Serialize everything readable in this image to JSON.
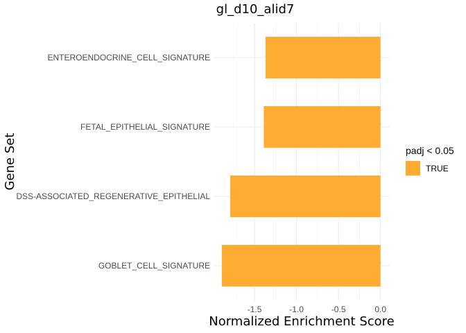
{
  "chart_data": {
    "type": "bar",
    "orientation": "horizontal",
    "title": "gl_d10_alid7",
    "xlabel": "Normalized Enrichment Score",
    "ylabel": "Gene Set",
    "categories": [
      "ENTEROENDOCRINE_CELL_SIGNATURE",
      "FETAL_EPITHELIAL_SIGNATURE",
      "DSS-ASSOCIATED_REGENERATIVE_EPITHELIAL",
      "GOBLET_CELL_SIGNATURE"
    ],
    "values": [
      -1.37,
      -1.39,
      -1.79,
      -1.89
    ],
    "xlim": [
      -1.98,
      0.11
    ],
    "xticks": [
      -1.5,
      -1.0,
      -0.5,
      0.0
    ],
    "xtick_labels": [
      "-1.5",
      "-1.0",
      "-0.5",
      "0.0"
    ],
    "grid": true,
    "legend": {
      "title": "padj < 0.05",
      "placement": "right",
      "entries": [
        {
          "label": "TRUE",
          "color": "#FFAC33"
        }
      ]
    },
    "bar_color": "#FFAC33"
  }
}
